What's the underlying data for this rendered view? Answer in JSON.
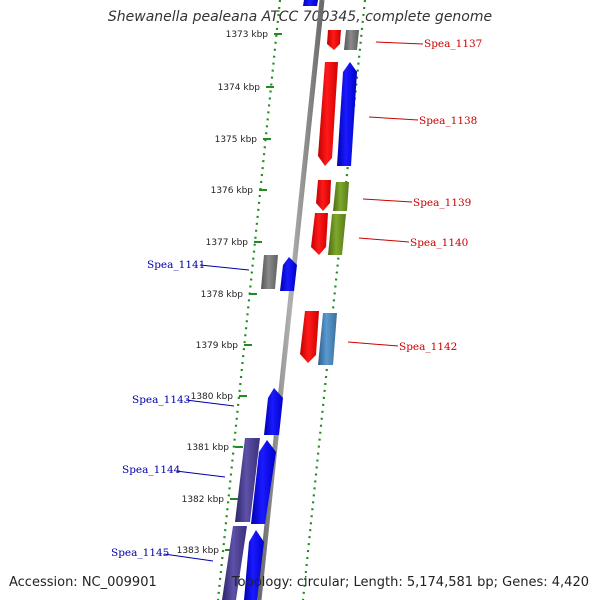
{
  "title": "Shewanella pealeana ATCC 700345, complete genome",
  "accession": "Accession: NC_009901",
  "summary": "Topology: circular; Length: 5,174,581 bp; Genes: 4,420",
  "colors": {
    "forward_label": "#cc0000",
    "reverse_label": "#0000aa",
    "red": "#ff0000",
    "blue": "#0000ff",
    "gray": "#707070",
    "olive": "#6b8e23",
    "steelblue": "#4682b4",
    "slate": "#483d8b",
    "dots": "#228b22"
  },
  "ticks": [
    {
      "label": "1373 kbp"
    },
    {
      "label": "1374 kbp"
    },
    {
      "label": "1375 kbp"
    },
    {
      "label": "1376 kbp"
    },
    {
      "label": "1377 kbp"
    },
    {
      "label": "1378 kbp"
    },
    {
      "label": "1379 kbp"
    },
    {
      "label": "1380 kbp"
    },
    {
      "label": "1381 kbp"
    },
    {
      "label": "1382 kbp"
    },
    {
      "label": "1383 kbp"
    }
  ],
  "gene_labels": {
    "g1137": "Spea_1137",
    "g1138": "Spea_1138",
    "g1139": "Spea_1139",
    "g1140": "Spea_1140",
    "g1141": "Spea_1141",
    "g1142": "Spea_1142",
    "g1143": "Spea_1143",
    "g1144": "Spea_1144",
    "g1145": "Spea_1145"
  }
}
